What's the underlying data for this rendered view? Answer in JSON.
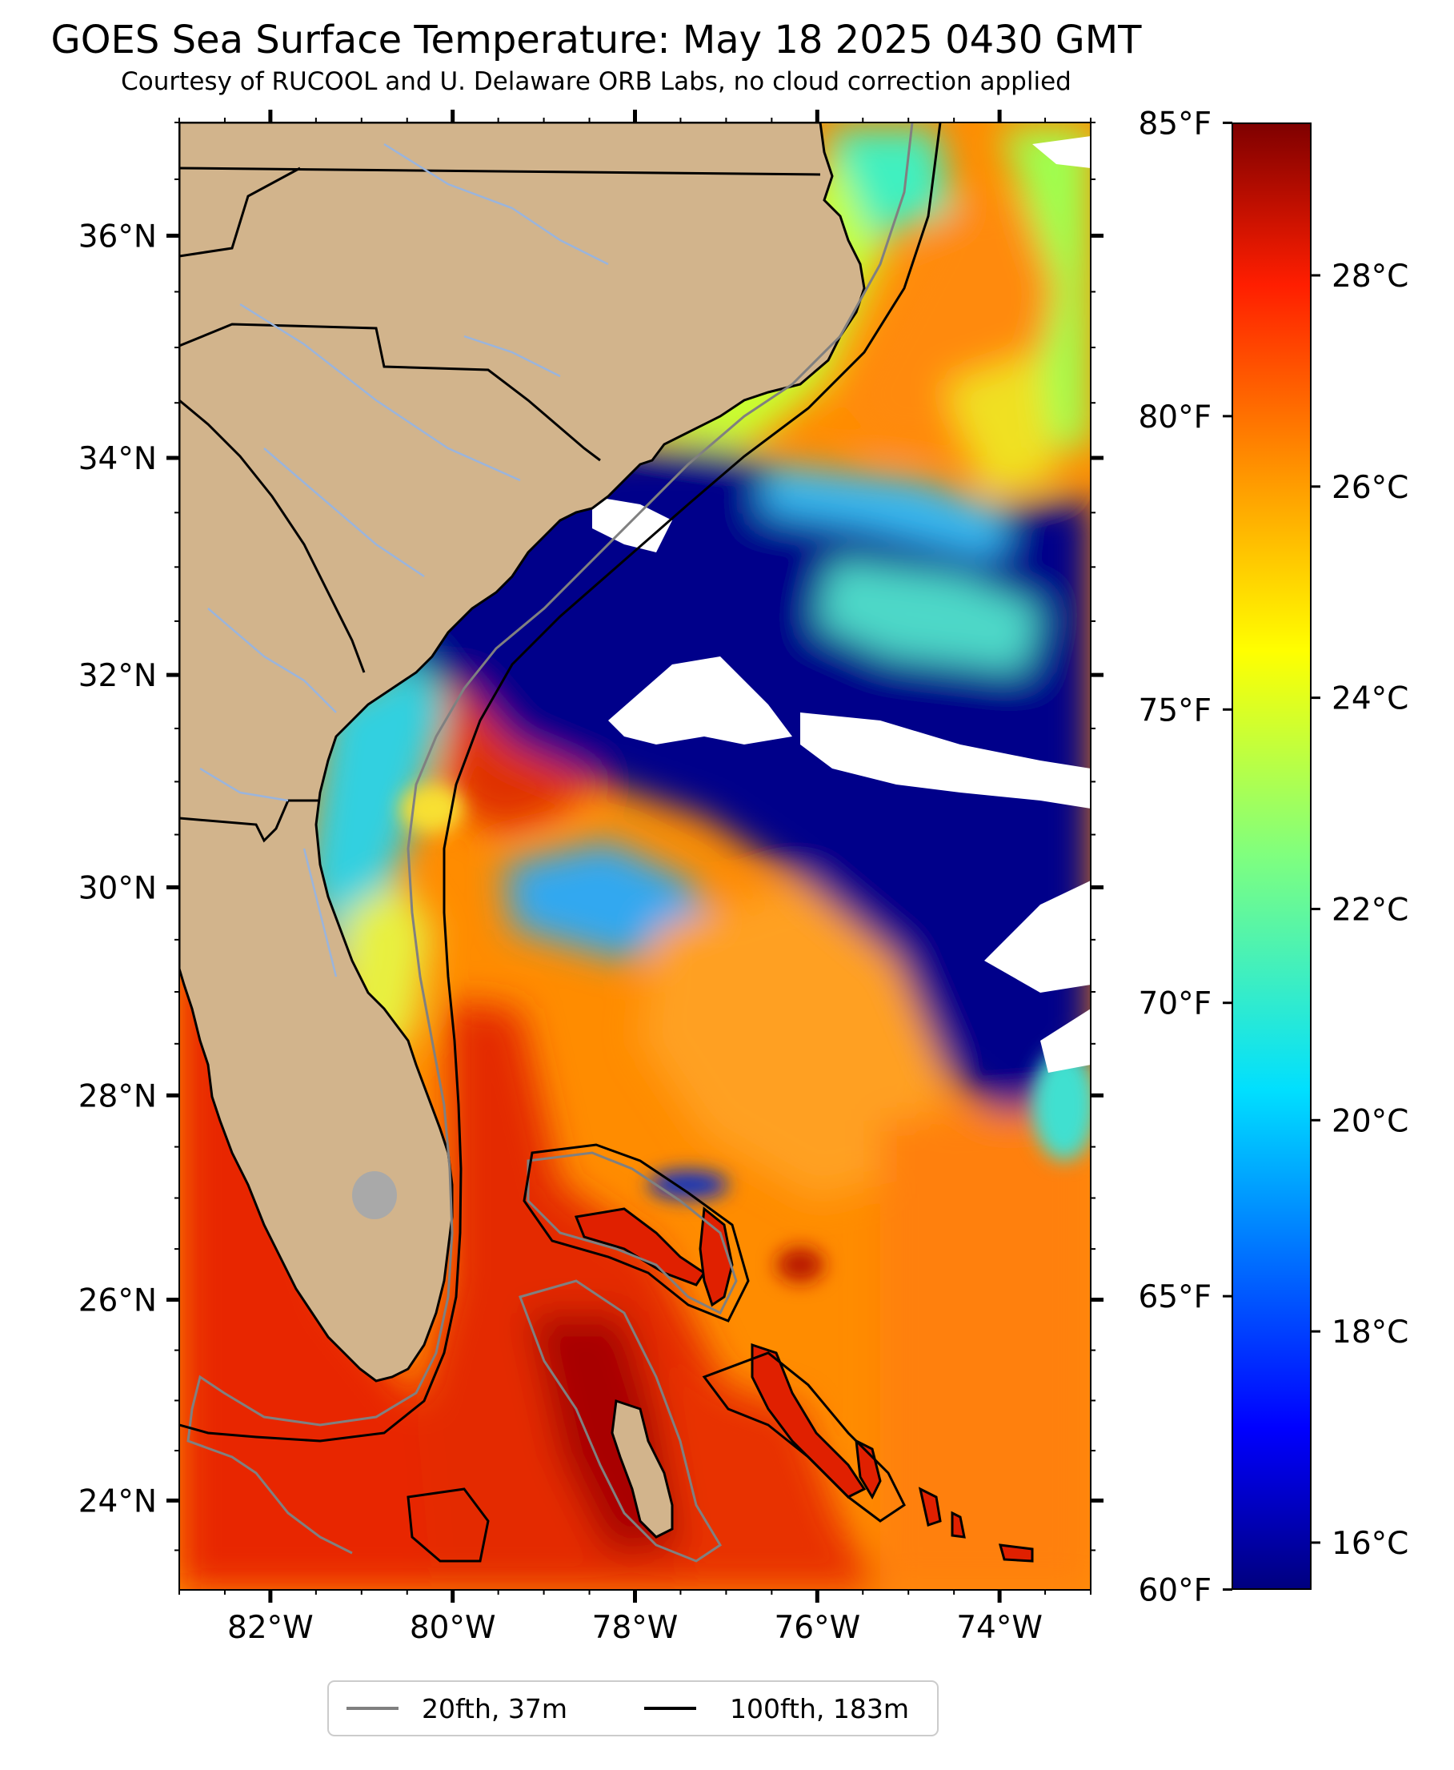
{
  "header": {
    "title": "GOES Sea Surface Temperature: May 18 2025 0430 GMT",
    "subtitle": "Courtesy of RUCOOL and U. Delaware ORB Labs, no cloud correction applied"
  },
  "map": {
    "lon_range": [
      -83,
      -73
    ],
    "lat_range": [
      23.1,
      37.0
    ],
    "lat_ticks": [
      {
        "value": 24,
        "label": "24°N"
      },
      {
        "value": 26,
        "label": "26°N"
      },
      {
        "value": 28,
        "label": "28°N"
      },
      {
        "value": 30,
        "label": "30°N"
      },
      {
        "value": 32,
        "label": "32°N"
      },
      {
        "value": 34,
        "label": "34°N"
      },
      {
        "value": 36,
        "label": "36°N"
      }
    ],
    "lon_ticks": [
      {
        "value": -82,
        "label": "82°W"
      },
      {
        "value": -80,
        "label": "80°W"
      },
      {
        "value": -78,
        "label": "78°W"
      },
      {
        "value": -76,
        "label": "76°W"
      },
      {
        "value": -74,
        "label": "74°W"
      }
    ],
    "colors": {
      "land": "#D2B48C",
      "cloud_mask": "#FFFFFF",
      "isobath_20": "#808080",
      "isobath_100": "#000000"
    }
  },
  "colorbar": {
    "colormap": "jet",
    "celsius_range": [
      15.56,
      29.44
    ],
    "fahrenheit_ticks": [
      {
        "value": 60,
        "label": "60°F"
      },
      {
        "value": 65,
        "label": "65°F"
      },
      {
        "value": 70,
        "label": "70°F"
      },
      {
        "value": 75,
        "label": "75°F"
      },
      {
        "value": 80,
        "label": "80°F"
      },
      {
        "value": 85,
        "label": "85°F"
      }
    ],
    "celsius_ticks": [
      {
        "value": 16,
        "label": "16°C"
      },
      {
        "value": 18,
        "label": "18°C"
      },
      {
        "value": 20,
        "label": "20°C"
      },
      {
        "value": 22,
        "label": "22°C"
      },
      {
        "value": 24,
        "label": "24°C"
      },
      {
        "value": 26,
        "label": "26°C"
      },
      {
        "value": 28,
        "label": "28°C"
      }
    ]
  },
  "legend": {
    "items": [
      {
        "label": "20fth, 37m",
        "color": "#808080"
      },
      {
        "label": "100fth, 183m",
        "color": "#000000"
      }
    ]
  }
}
